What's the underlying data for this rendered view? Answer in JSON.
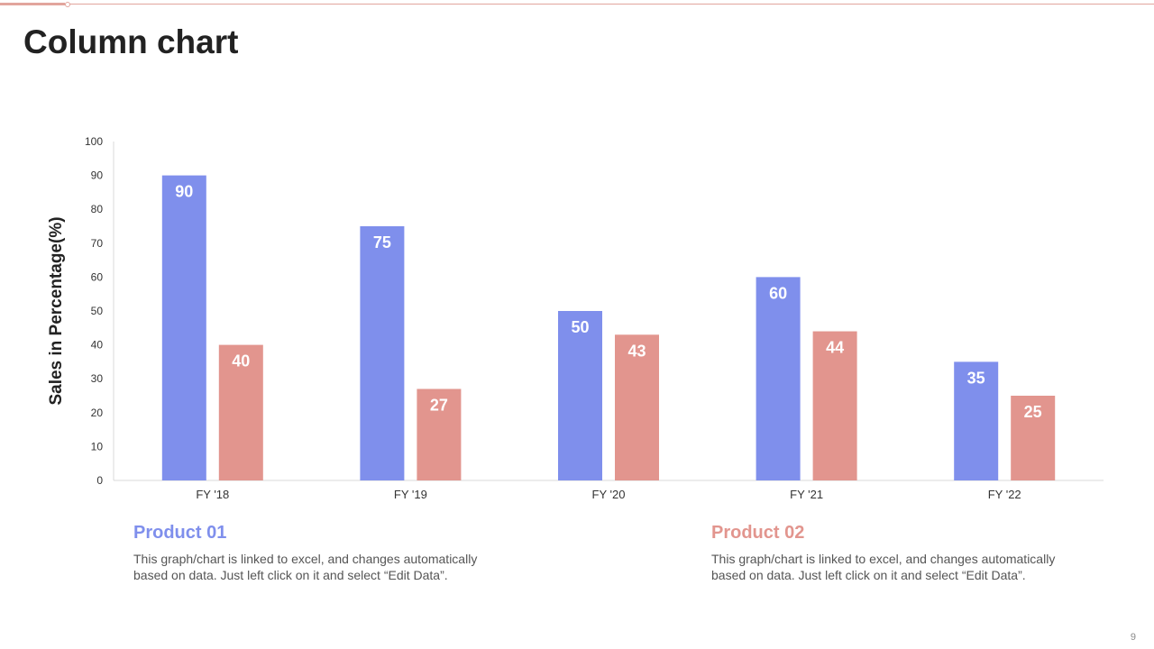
{
  "page": {
    "title": "Column chart",
    "page_number": "9"
  },
  "colors": {
    "product1": "#7f8fec",
    "product2": "#e2958e",
    "accent": "#e2a59d",
    "axis": "#d9d9d9",
    "tick_text": "#333333"
  },
  "chart_data": {
    "type": "bar",
    "title": "",
    "xlabel": "",
    "ylabel": "Sales in Percentage(%)",
    "ylim": [
      0,
      100
    ],
    "yticks": [
      0,
      10,
      20,
      30,
      40,
      50,
      60,
      70,
      80,
      90,
      100
    ],
    "grid": false,
    "categories": [
      "FY '18",
      "FY '19",
      "FY '20",
      "FY '21",
      "FY '22"
    ],
    "series": [
      {
        "name": "Product 01",
        "values": [
          90,
          75,
          50,
          60,
          35
        ]
      },
      {
        "name": "Product 02",
        "values": [
          40,
          27,
          43,
          44,
          25
        ]
      }
    ]
  },
  "legend": {
    "product1": {
      "title": "Product 01",
      "text": "This graph/chart is linked to excel, and changes automatically based on data. Just left click on it and select “Edit Data”."
    },
    "product2": {
      "title": "Product 02",
      "text": "This graph/chart is linked to excel, and changes automatically based on data. Just left click on it and select “Edit Data”."
    }
  }
}
